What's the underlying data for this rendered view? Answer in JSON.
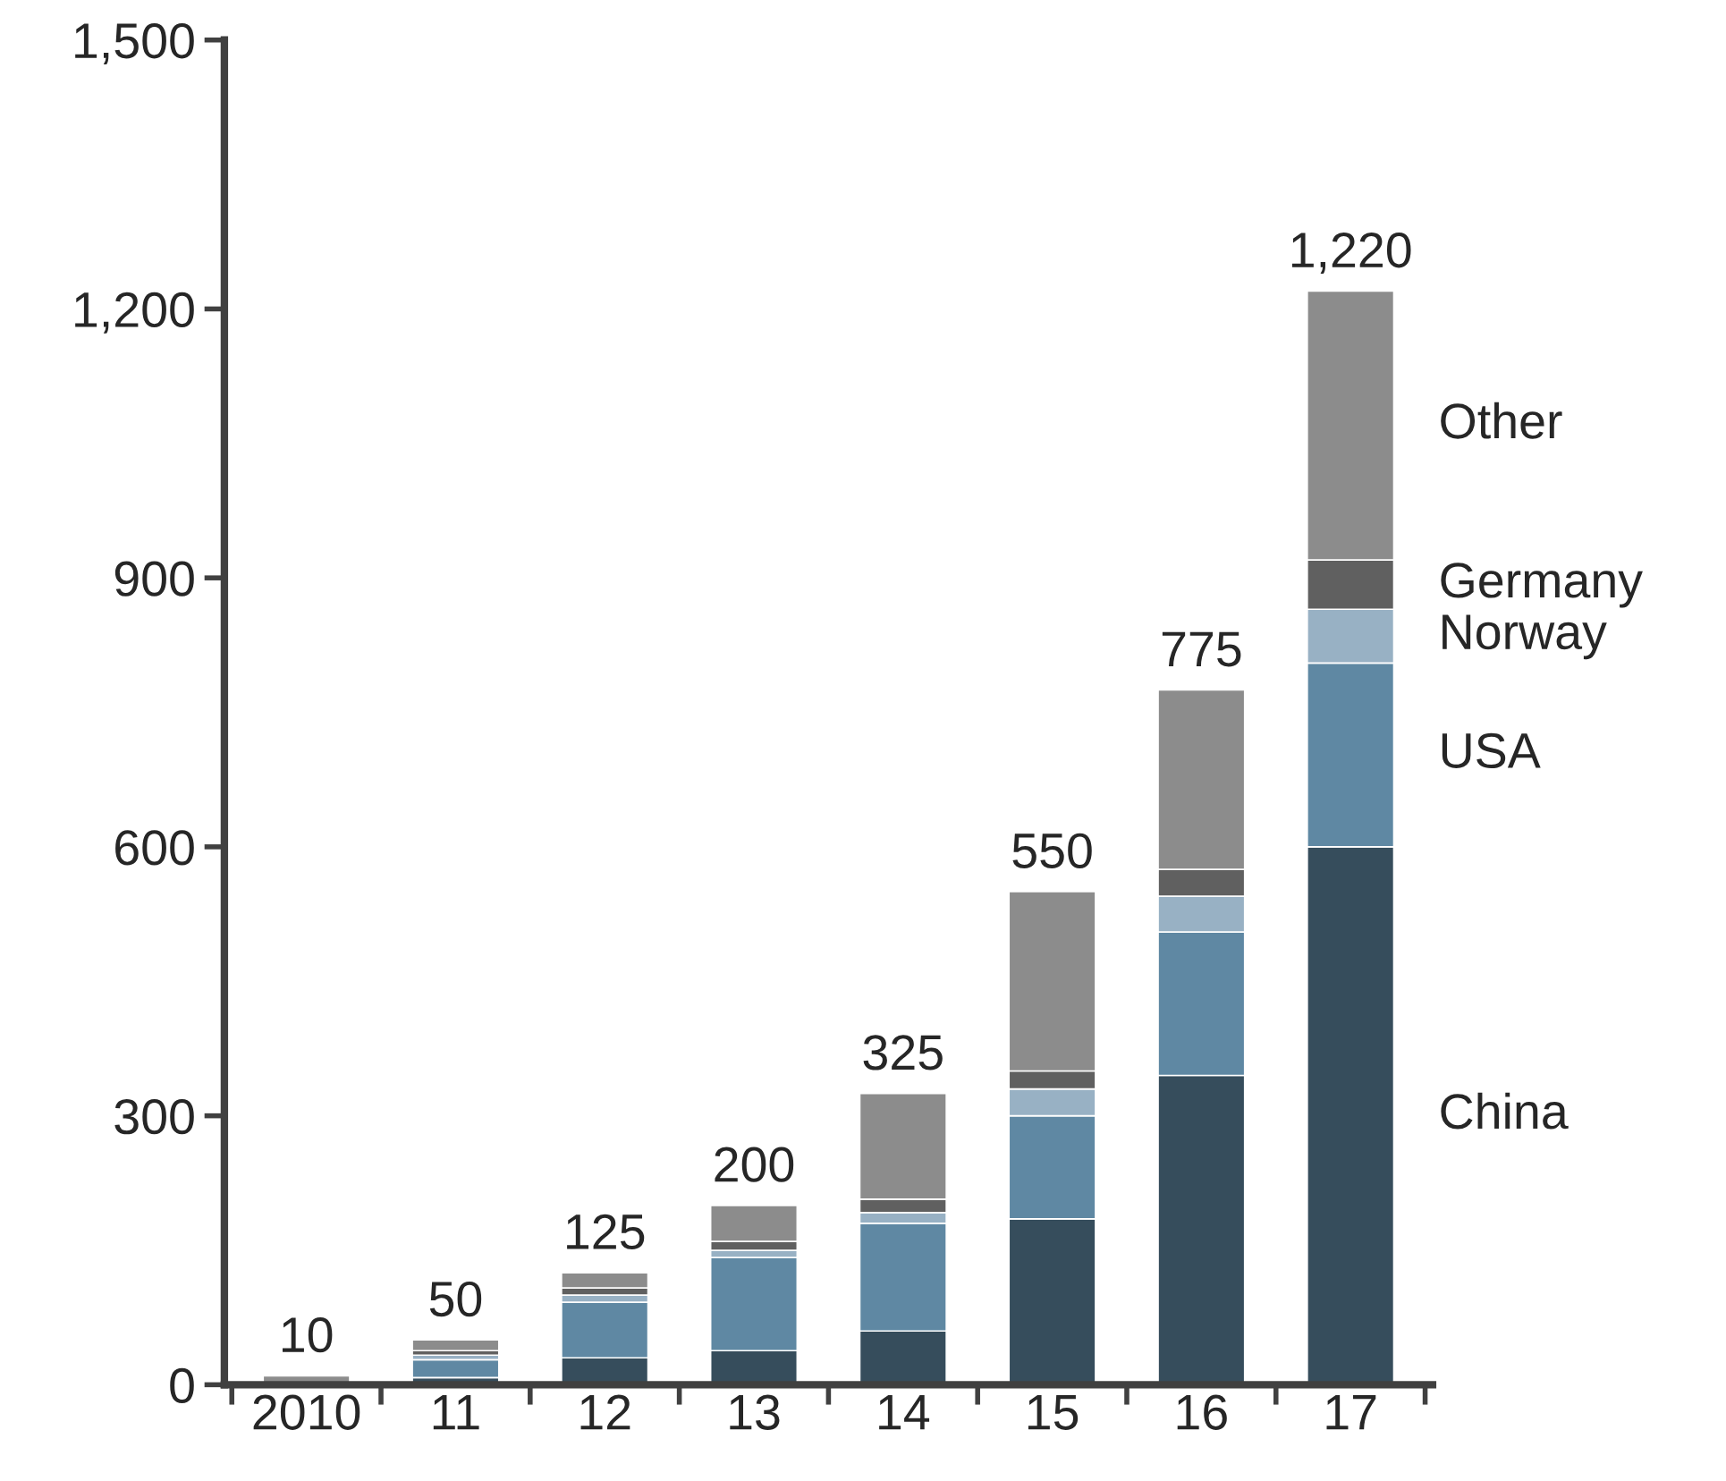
{
  "chart_data": {
    "type": "bar",
    "stacked": true,
    "categories": [
      "2010",
      "11",
      "12",
      "13",
      "14",
      "15",
      "16",
      "17"
    ],
    "series": [
      {
        "name": "China",
        "color": "#364d5c",
        "values": [
          null,
          8,
          30,
          38,
          60,
          185,
          345,
          600
        ]
      },
      {
        "name": "USA",
        "color": "#5f88a3",
        "values": [
          null,
          20,
          62,
          104,
          120,
          115,
          160,
          205
        ]
      },
      {
        "name": "Norway",
        "color": "#98b1c4",
        "values": [
          null,
          5,
          8,
          8,
          12,
          30,
          40,
          60
        ]
      },
      {
        "name": "Germany",
        "color": "#606060",
        "values": [
          null,
          5,
          8,
          10,
          15,
          20,
          30,
          55
        ]
      },
      {
        "name": "Other",
        "color": "#8c8c8c",
        "values": [
          10,
          12,
          17,
          40,
          118,
          200,
          200,
          300
        ]
      }
    ],
    "totals": [
      "10",
      "50",
      "125",
      "200",
      "325",
      "550",
      "775",
      "1,220"
    ],
    "ylim": [
      0,
      1500
    ],
    "yticks": [
      0,
      {
        "value": 300,
        "label": "300"
      },
      {
        "value": 600,
        "label": "600"
      },
      {
        "value": 900,
        "label": "900"
      },
      {
        "value": 1200,
        "label": "1,200"
      },
      {
        "value": 1500,
        "label": "1,500"
      }
    ],
    "grid": false,
    "legend": false
  }
}
